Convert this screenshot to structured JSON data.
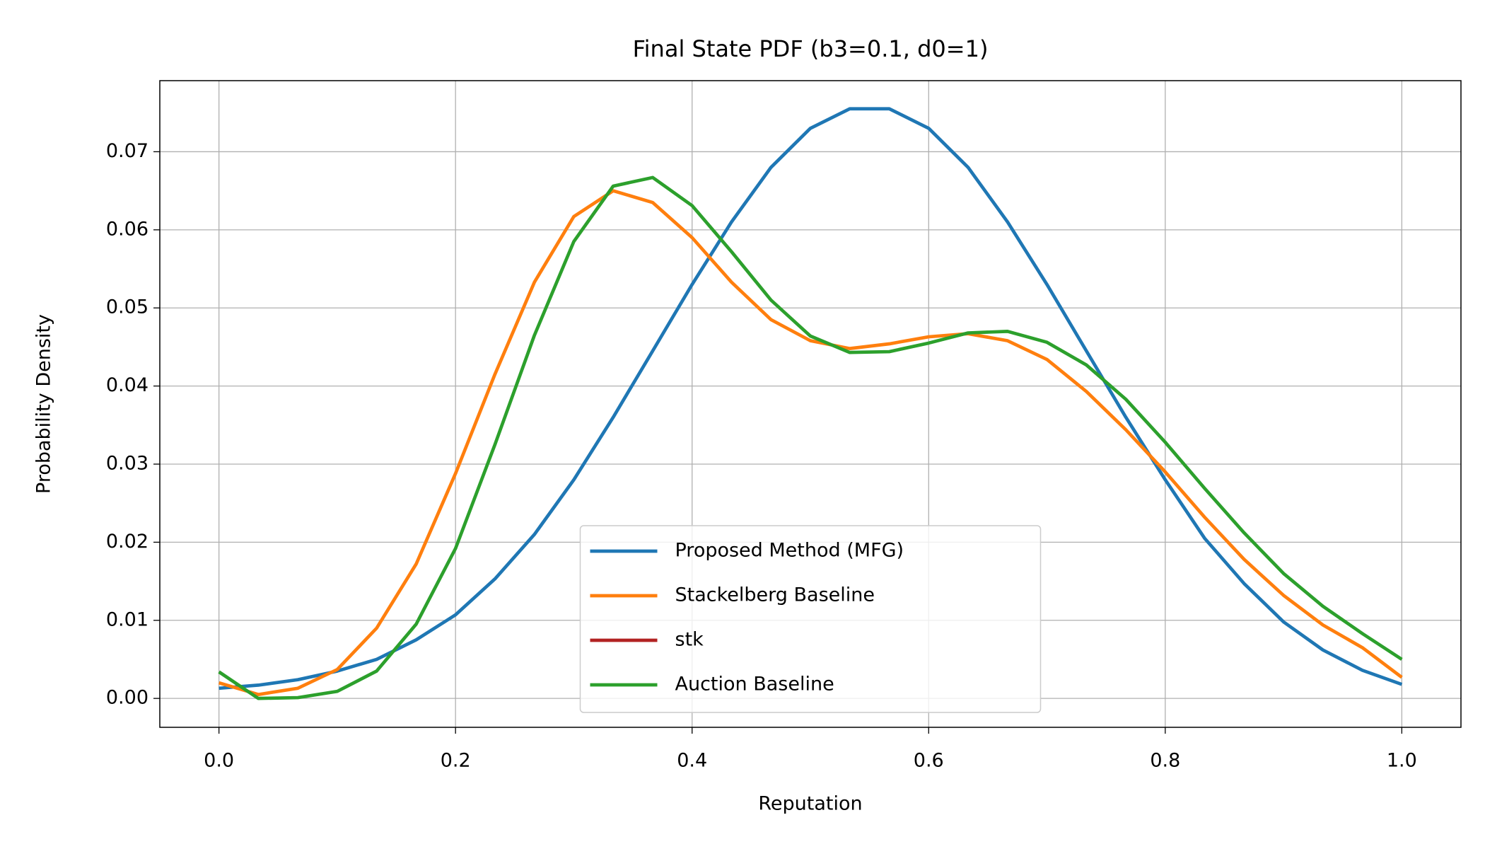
{
  "chart_data": {
    "type": "line",
    "title": "Final State PDF (b3=0.1, d0=1)",
    "x_label": "Reputation",
    "y_label": "Probability Density",
    "x": [
      0.0,
      0.0333,
      0.0667,
      0.1,
      0.1333,
      0.1667,
      0.2,
      0.2333,
      0.2667,
      0.3,
      0.3333,
      0.3667,
      0.4,
      0.4333,
      0.4667,
      0.5,
      0.5333,
      0.5667,
      0.6,
      0.6333,
      0.6667,
      0.7,
      0.7333,
      0.7667,
      0.8,
      0.8333,
      0.8667,
      0.9,
      0.9333,
      0.9667,
      1.0
    ],
    "series": [
      {
        "name": "Proposed Method (MFG)",
        "color": "#1f77b4",
        "values": [
          0.0013,
          0.0017,
          0.0024,
          0.0035,
          0.005,
          0.0075,
          0.0107,
          0.0153,
          0.021,
          0.028,
          0.036,
          0.0445,
          0.053,
          0.061,
          0.068,
          0.073,
          0.0755,
          0.0755,
          0.073,
          0.068,
          0.061,
          0.053,
          0.0445,
          0.036,
          0.028,
          0.0205,
          0.0147,
          0.0098,
          0.0062,
          0.0036,
          0.0018
        ]
      },
      {
        "name": "Stackelberg Baseline",
        "color": "#ff7f0e",
        "values": [
          0.002,
          0.0005,
          0.0013,
          0.0037,
          0.009,
          0.0172,
          0.0288,
          0.0415,
          0.0533,
          0.0617,
          0.065,
          0.0635,
          0.059,
          0.0533,
          0.0485,
          0.0458,
          0.0448,
          0.0454,
          0.0463,
          0.0467,
          0.0458,
          0.0434,
          0.0393,
          0.0344,
          0.029,
          0.0232,
          0.0178,
          0.0132,
          0.0094,
          0.0065,
          0.0027
        ]
      },
      {
        "name": "stk",
        "color": "#b22222",
        "values": [
          null,
          null,
          null,
          null,
          null,
          null,
          null,
          null,
          null,
          null,
          null,
          null,
          null,
          null,
          null,
          null,
          null,
          null,
          null,
          null,
          null,
          null,
          null,
          null,
          null,
          null,
          null,
          null,
          null,
          null,
          null
        ]
      },
      {
        "name": "Auction Baseline",
        "color": "#2ca02c",
        "values": [
          0.0034,
          0.0,
          0.0001,
          0.0009,
          0.0035,
          0.0095,
          0.0192,
          0.0325,
          0.0465,
          0.0585,
          0.0656,
          0.0667,
          0.0631,
          0.0572,
          0.051,
          0.0464,
          0.0443,
          0.0444,
          0.0455,
          0.0468,
          0.047,
          0.0456,
          0.0427,
          0.0383,
          0.0328,
          0.0269,
          0.0212,
          0.016,
          0.0118,
          0.0083,
          0.005
        ]
      }
    ],
    "xlim": [
      -0.05,
      1.05
    ],
    "ylim": [
      -0.0037,
      0.0791
    ],
    "xticks": [
      {
        "value": 0,
        "label": "0.0"
      },
      0.2,
      0.4,
      0.6,
      0.8,
      {
        "value": 1,
        "label": "1.0"
      }
    ],
    "yticks": [
      {
        "value": 0,
        "label": "0.00"
      },
      0.01,
      0.02,
      0.03,
      0.04,
      0.05,
      0.06,
      0.07
    ],
    "grid": true,
    "legend": "lower center"
  }
}
